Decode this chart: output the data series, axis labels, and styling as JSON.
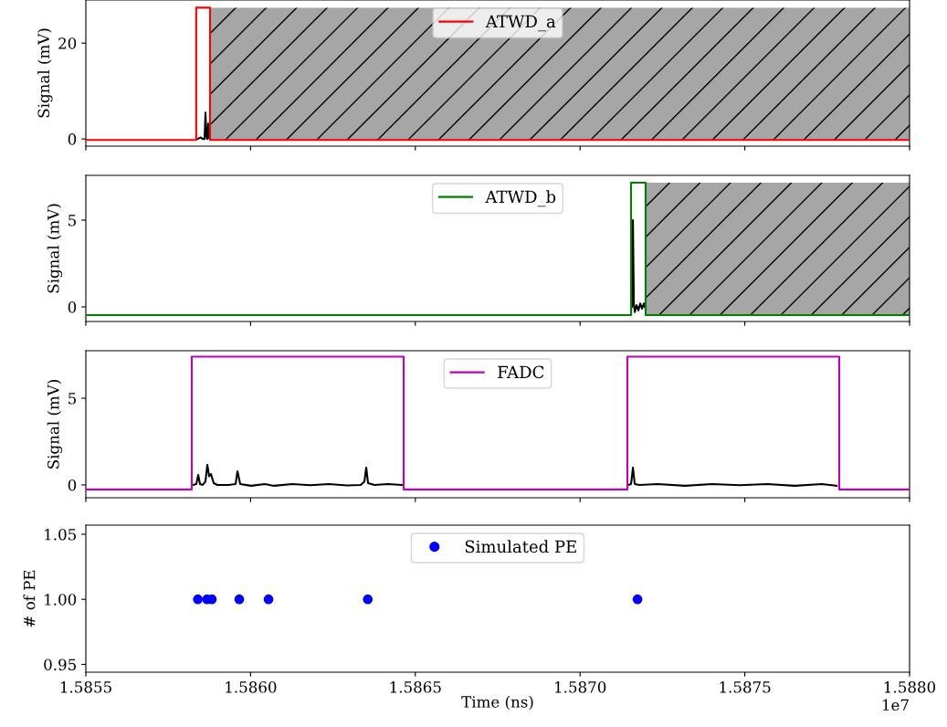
{
  "chart_data": [
    {
      "type": "line",
      "ylabel": "Signal (mV)",
      "xlim": [
        1.5855,
        1.588
      ],
      "ylim": [
        -1.5,
        29
      ],
      "yticks": [
        0,
        20
      ],
      "xticks": [
        1.5855,
        1.586,
        1.5865,
        1.587,
        1.5875,
        1.588
      ],
      "tick_labels": "y",
      "legend": "top center",
      "grid": false,
      "bands": [
        {
          "axis": "x",
          "from": 1.585877,
          "to": 1.588,
          "color": "#a6a6a6"
        }
      ],
      "series": [
        {
          "name": "ATWD_a",
          "color": "#ff0000",
          "x": [
            1.5855,
            1.585835,
            1.585835,
            1.585877,
            1.585877,
            1.588
          ],
          "values": [
            -0.2,
            -0.2,
            27.4,
            27.4,
            -0.2,
            -0.2
          ]
        },
        {
          "color": "#000000",
          "x": [
            1.5858382,
            1.5858493,
            1.5858548,
            1.5858604,
            1.5858631,
            1.5858659,
            1.5858687,
            1.5858714,
            1.5858742,
            1.585877
          ],
          "values": [
            0,
            0.3,
            0,
            0,
            5.5,
            0.5,
            0,
            3.2,
            0.2,
            0
          ]
        }
      ]
    },
    {
      "type": "line",
      "ylabel": "Signal (mV)",
      "xlim": [
        1.5855,
        1.588
      ],
      "ylim": [
        -0.84,
        7.58
      ],
      "yticks": [
        0,
        5
      ],
      "xticks": [
        1.5855,
        1.586,
        1.5865,
        1.587,
        1.5875,
        1.588
      ],
      "tick_labels": "y",
      "legend": "top center",
      "grid": false,
      "bands": [
        {
          "axis": "x",
          "from": 1.587199,
          "to": 1.588,
          "color": "#a6a6a6"
        }
      ],
      "series": [
        {
          "name": "ATWD_b",
          "color": "#008000",
          "x": [
            1.5855,
            1.5871548,
            1.5871548,
            1.587199,
            1.587199,
            1.588
          ],
          "values": [
            -0.47,
            -0.47,
            7.16,
            7.16,
            -0.47,
            -0.47
          ]
        },
        {
          "color": "#000000",
          "x": [
            1.5871577,
            1.5871604,
            1.5871632,
            1.587166,
            1.5871715,
            1.5871771,
            1.5871826,
            1.5871881,
            1.5871937,
            1.5871964
          ],
          "values": [
            0,
            5.0,
            0.2,
            -0.3,
            0.1,
            -0.2,
            0.2,
            -0.1,
            0.2,
            0
          ]
        }
      ]
    },
    {
      "type": "line",
      "ylabel": "Signal (mV)",
      "xlim": [
        1.5855,
        1.588
      ],
      "ylim": [
        -0.74,
        7.74
      ],
      "yticks": [
        0,
        5
      ],
      "xticks": [
        1.5855,
        1.586,
        1.5865,
        1.587,
        1.5875,
        1.588
      ],
      "tick_labels": "y",
      "legend": "top center",
      "grid": false,
      "series": [
        {
          "name": "FADC",
          "color": "#bf00bf",
          "x": [
            1.5855,
            1.5858215,
            1.5858215,
            1.5864646,
            1.5864646,
            1.5871436,
            1.5871436,
            1.5877866,
            1.5877866,
            1.588
          ],
          "values": [
            -0.26,
            -0.26,
            7.4,
            7.4,
            -0.26,
            -0.26,
            7.4,
            7.4,
            -0.26,
            -0.26
          ]
        },
        {
          "color": "#000000",
          "x": [
            1.5858243,
            1.5858354,
            1.585841,
            1.5858465,
            1.5858548,
            1.5858631,
            1.5858687,
            1.5858742,
            1.5858798,
            1.5858881,
            1.5858992,
            1.5859324,
            1.5859546,
            1.5859602,
            1.5859685,
            1.5860017,
            1.5860433,
            1.586071,
            1.5861265,
            1.5861819,
            1.5862374,
            1.5862928,
            1.5863344,
            1.5863455,
            1.586351,
            1.5863565,
            1.586376,
            1.5864175,
            1.5864591,
            1.5868,
            1.5871466,
            1.5871549,
            1.5871604,
            1.587166,
            1.5871798,
            1.5872353,
            1.5873184,
            1.5874016,
            1.5874848,
            1.5875679,
            1.5876511,
            1.5877342,
            1.5877786
          ],
          "values": [
            0,
            0.05,
            0.58,
            0.05,
            0.0,
            0.2,
            1.16,
            0.5,
            0.63,
            0.1,
            0.0,
            0.0,
            0.05,
            0.79,
            0.05,
            -0.05,
            0.05,
            -0.05,
            0.05,
            -0.02,
            0.05,
            -0.03,
            0.0,
            0.2,
            1.0,
            0.1,
            0.0,
            0.05,
            0.0,
            null,
            0,
            0.05,
            1.0,
            0.05,
            0.0,
            0.05,
            -0.05,
            0.05,
            -0.02,
            0.05,
            -0.05,
            0.05,
            -0.05
          ]
        }
      ]
    },
    {
      "type": "scatter",
      "ylabel": "# of PE",
      "xlabel": "Time (ns)",
      "xlim": [
        1.5855,
        1.588
      ],
      "ylim": [
        0.944,
        1.057
      ],
      "yticks": [
        {
          "value": 0.95,
          "label": "0.95"
        },
        {
          "value": 1.0,
          "label": "1.00"
        },
        {
          "value": 1.05,
          "label": "1.05"
        }
      ],
      "xticks": [
        {
          "value": 1.5855,
          "label": "1.5855"
        },
        {
          "value": 1.586,
          "label": "1.5860"
        },
        {
          "value": 1.5865,
          "label": "1.5865"
        },
        {
          "value": 1.587,
          "label": "1.5870"
        },
        {
          "value": 1.5875,
          "label": "1.5875"
        },
        {
          "value": 1.588,
          "label": "1.5880"
        }
      ],
      "legend": "top center",
      "grid": false,
      "marker": "circle",
      "annotations": [
        "1e7"
      ],
      "series": [
        {
          "name": "Simulated PE",
          "color": "#0000ff",
          "x": [
            1.58584,
            1.5858678,
            1.5858825,
            1.5859657,
            1.5860544,
            1.5863557,
            1.5871743
          ],
          "values": [
            1,
            1,
            1,
            1,
            1,
            1,
            1
          ]
        }
      ]
    }
  ]
}
